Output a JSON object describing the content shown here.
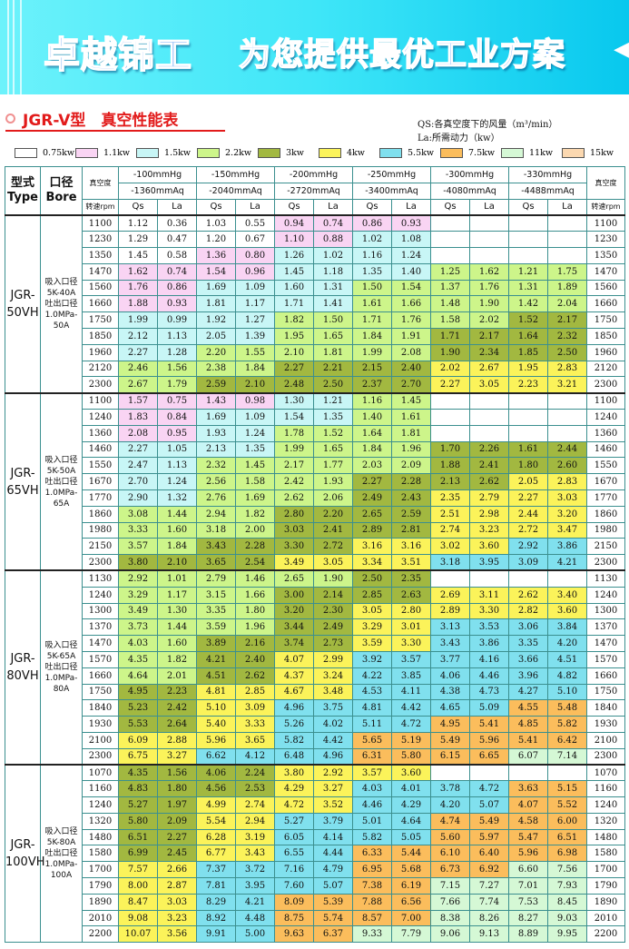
{
  "banner": {
    "left": "卓越锦工",
    "right": "为您提供最优工业方案"
  },
  "title": "JGR-V型　真空性能表",
  "notes": [
    "QS:各真空度下的风量（m³/min）",
    "La:所需动力（kw）"
  ],
  "colors": {
    "W": "#ffffff",
    "P": "#f9d4f3",
    "C": "#c8f6f6",
    "G": "#cdf58a",
    "O": "#a2b840",
    "Y": "#fbf35a",
    "B": "#80e0ee",
    "R": "#fbbd5c",
    "M": "#d5f8d5",
    "T": "#fbd8b0"
  },
  "legend": [
    {
      "c": "W",
      "label": "0.75kw"
    },
    {
      "c": "P",
      "label": "1.1kw"
    },
    {
      "c": "C",
      "label": "1.5kw"
    },
    {
      "c": "G",
      "label": "2.2kw"
    },
    {
      "c": "O",
      "label": "3kw"
    },
    {
      "c": "Y",
      "label": "4kw"
    },
    {
      "c": "B",
      "label": "5.5kw"
    },
    {
      "c": "R",
      "label": "7.5kw"
    },
    {
      "c": "M",
      "label": "11kw"
    },
    {
      "c": "T",
      "label": "15kw"
    }
  ],
  "header": {
    "type": "型式",
    "type_en": "Type",
    "bore": "口径",
    "bore_en": "Bore",
    "vac": "真空度",
    "rpm": "转速rpm",
    "qs": "Qs",
    "la": "La",
    "pressures": [
      [
        "-100mmHg",
        "-1360mmAq"
      ],
      [
        "-150mmHg",
        "-2040mmAq"
      ],
      [
        "-200mmHg",
        "-2720mmAq"
      ],
      [
        "-250mmHg",
        "-3400mmAq"
      ],
      [
        "-300mmHg",
        "-4080mmAq"
      ],
      [
        "-330mmHg",
        "-4488mmAq"
      ]
    ]
  },
  "groups": [
    {
      "type": "JGR-50VH",
      "bore": [
        "吸入口径",
        "5K-40A",
        "吐出口径",
        "1.0MPa-",
        "50A"
      ],
      "rows": [
        [
          "1100",
          "WWPP",
          [
            "1.12",
            "0.36",
            "1.03",
            "0.55",
            "0.94",
            "0.74",
            "0.86",
            "0.93"
          ]
        ],
        [
          "1230",
          "WWPC",
          [
            "1.29",
            "0.47",
            "1.20",
            "0.67",
            "1.10",
            "0.88",
            "1.02",
            "1.08"
          ]
        ],
        [
          "1350",
          "WPCC",
          [
            "1.45",
            "0.58",
            "1.36",
            "0.80",
            "1.26",
            "1.02",
            "1.16",
            "1.24"
          ]
        ],
        [
          "1470",
          "PPCCGG",
          [
            "1.62",
            "0.74",
            "1.54",
            "0.96",
            "1.45",
            "1.18",
            "1.35",
            "1.40",
            "1.25",
            "1.62",
            "1.21",
            "1.75"
          ]
        ],
        [
          "1560",
          "PCCGGG",
          [
            "1.76",
            "0.86",
            "1.69",
            "1.09",
            "1.60",
            "1.31",
            "1.50",
            "1.54",
            "1.37",
            "1.76",
            "1.31",
            "1.89"
          ]
        ],
        [
          "1660",
          "PCCGGG",
          [
            "1.88",
            "0.93",
            "1.81",
            "1.17",
            "1.71",
            "1.41",
            "1.61",
            "1.66",
            "1.48",
            "1.90",
            "1.42",
            "2.04"
          ]
        ],
        [
          "1750",
          "CCGGGO",
          [
            "1.99",
            "0.99",
            "1.92",
            "1.27",
            "1.82",
            "1.50",
            "1.71",
            "1.76",
            "1.58",
            "2.02",
            "1.52",
            "2.17"
          ]
        ],
        [
          "1850",
          "CCGGOO",
          [
            "2.12",
            "1.13",
            "2.05",
            "1.39",
            "1.95",
            "1.65",
            "1.84",
            "1.91",
            "1.71",
            "2.17",
            "1.64",
            "2.32"
          ]
        ],
        [
          "1960",
          "CGGGOO",
          [
            "2.27",
            "1.28",
            "2.20",
            "1.55",
            "2.10",
            "1.81",
            "1.99",
            "2.08",
            "1.90",
            "2.34",
            "1.85",
            "2.50"
          ]
        ],
        [
          "2120",
          "GGOOYY",
          [
            "2.46",
            "1.56",
            "2.38",
            "1.84",
            "2.27",
            "2.21",
            "2.15",
            "2.40",
            "2.02",
            "2.67",
            "1.95",
            "2.83"
          ]
        ],
        [
          "2300",
          "GOOOYY",
          [
            "2.67",
            "1.79",
            "2.59",
            "2.10",
            "2.48",
            "2.50",
            "2.37",
            "2.70",
            "2.27",
            "3.05",
            "2.23",
            "3.21"
          ]
        ]
      ]
    },
    {
      "type": "JGR-65VH",
      "bore": [
        "吸入口径",
        "5K-50A",
        "吐出口径",
        "1.0MPa-",
        "65A"
      ],
      "rows": [
        [
          "1100",
          "PPCG",
          [
            "1.57",
            "0.75",
            "1.43",
            "0.98",
            "1.30",
            "1.21",
            "1.16",
            "1.45"
          ]
        ],
        [
          "1240",
          "PCCG",
          [
            "1.83",
            "0.84",
            "1.69",
            "1.09",
            "1.54",
            "1.35",
            "1.40",
            "1.61"
          ]
        ],
        [
          "1360",
          "PCGG",
          [
            "2.08",
            "0.95",
            "1.93",
            "1.24",
            "1.78",
            "1.52",
            "1.64",
            "1.81"
          ]
        ],
        [
          "1460",
          "CCGGOO",
          [
            "2.27",
            "1.05",
            "2.13",
            "1.35",
            "1.99",
            "1.65",
            "1.84",
            "1.96",
            "1.70",
            "2.26",
            "1.61",
            "2.44"
          ]
        ],
        [
          "1550",
          "CGGGOO",
          [
            "2.47",
            "1.13",
            "2.32",
            "1.45",
            "2.17",
            "1.77",
            "2.03",
            "2.09",
            "1.88",
            "2.41",
            "1.80",
            "2.60"
          ]
        ],
        [
          "1670",
          "CGGOOY",
          [
            "2.70",
            "1.24",
            "2.56",
            "1.58",
            "2.42",
            "1.93",
            "2.27",
            "2.28",
            "2.13",
            "2.62",
            "2.05",
            "2.83"
          ]
        ],
        [
          "1770",
          "CGGOYY",
          [
            "2.90",
            "1.32",
            "2.76",
            "1.69",
            "2.62",
            "2.06",
            "2.49",
            "2.43",
            "2.35",
            "2.79",
            "2.27",
            "3.03"
          ]
        ],
        [
          "1860",
          "GGOOYY",
          [
            "3.08",
            "1.44",
            "2.94",
            "1.82",
            "2.80",
            "2.20",
            "2.65",
            "2.59",
            "2.51",
            "2.98",
            "2.44",
            "3.20"
          ]
        ],
        [
          "1980",
          "GGOOYY",
          [
            "3.33",
            "1.60",
            "3.18",
            "2.00",
            "3.03",
            "2.41",
            "2.89",
            "2.81",
            "2.74",
            "3.23",
            "2.72",
            "3.47"
          ]
        ],
        [
          "2150",
          "GOOYYB",
          [
            "3.57",
            "1.84",
            "3.43",
            "2.28",
            "3.30",
            "2.72",
            "3.16",
            "3.16",
            "3.02",
            "3.60",
            "2.92",
            "3.86"
          ]
        ],
        [
          "2300",
          "OOYYBB",
          [
            "3.80",
            "2.10",
            "3.65",
            "2.54",
            "3.49",
            "3.05",
            "3.34",
            "3.51",
            "3.18",
            "3.95",
            "3.09",
            "4.21"
          ]
        ]
      ]
    },
    {
      "type": "JGR-80VH",
      "bore": [
        "吸入口径",
        "5K-65A",
        "吐出口径",
        "1.0MPa-",
        "80A"
      ],
      "rows": [
        [
          "1130",
          "GGGO",
          [
            "2.92",
            "1.01",
            "2.79",
            "1.46",
            "2.65",
            "1.90",
            "2.50",
            "2.35"
          ]
        ],
        [
          "1240",
          "GGOOYY",
          [
            "3.29",
            "1.17",
            "3.15",
            "1.66",
            "3.00",
            "2.14",
            "2.85",
            "2.63",
            "2.69",
            "3.11",
            "2.62",
            "3.40"
          ]
        ],
        [
          "1300",
          "GGOYYY",
          [
            "3.49",
            "1.30",
            "3.35",
            "1.80",
            "3.20",
            "2.30",
            "3.05",
            "2.80",
            "2.89",
            "3.30",
            "2.82",
            "3.60"
          ]
        ],
        [
          "1370",
          "GGOYBB",
          [
            "3.73",
            "1.44",
            "3.59",
            "1.96",
            "3.44",
            "2.49",
            "3.29",
            "3.01",
            "3.13",
            "3.53",
            "3.06",
            "3.84"
          ]
        ],
        [
          "1470",
          "GOOYBB",
          [
            "4.03",
            "1.60",
            "3.89",
            "2.16",
            "3.74",
            "2.73",
            "3.59",
            "3.30",
            "3.43",
            "3.86",
            "3.35",
            "4.20"
          ]
        ],
        [
          "1570",
          "GOYBBB",
          [
            "4.35",
            "1.82",
            "4.21",
            "2.40",
            "4.07",
            "2.99",
            "3.92",
            "3.57",
            "3.77",
            "4.16",
            "3.66",
            "4.51"
          ]
        ],
        [
          "1660",
          "GOYBBB",
          [
            "4.64",
            "2.01",
            "4.51",
            "2.62",
            "4.37",
            "3.24",
            "4.22",
            "3.85",
            "4.06",
            "4.46",
            "3.96",
            "4.82"
          ]
        ],
        [
          "1750",
          "OYYBBB",
          [
            "4.95",
            "2.23",
            "4.81",
            "2.85",
            "4.67",
            "3.48",
            "4.53",
            "4.11",
            "4.38",
            "4.73",
            "4.27",
            "5.10"
          ]
        ],
        [
          "1840",
          "OYBBBR",
          [
            "5.23",
            "2.42",
            "5.10",
            "3.09",
            "4.96",
            "3.75",
            "4.81",
            "4.42",
            "4.65",
            "5.09",
            "4.55",
            "5.48"
          ]
        ],
        [
          "1930",
          "OYBBRR",
          [
            "5.53",
            "2.64",
            "5.40",
            "3.33",
            "5.26",
            "4.02",
            "5.11",
            "4.72",
            "4.95",
            "5.41",
            "4.85",
            "5.82"
          ]
        ],
        [
          "2100",
          "YYBRRR",
          [
            "6.09",
            "2.88",
            "5.96",
            "3.65",
            "5.82",
            "4.42",
            "5.65",
            "5.19",
            "5.49",
            "5.96",
            "5.41",
            "6.42"
          ]
        ],
        [
          "2300",
          "YBBRRM",
          [
            "6.75",
            "3.27",
            "6.62",
            "4.12",
            "6.48",
            "4.96",
            "6.31",
            "5.80",
            "6.15",
            "6.65",
            "6.07",
            "7.14"
          ]
        ]
      ]
    },
    {
      "type": "JGR-100VH",
      "bore": [
        "吸入口径",
        "5K-80A",
        "吐出口径",
        "1.0MPa-",
        "100A"
      ],
      "rows": [
        [
          "1070",
          "OOYY",
          [
            "4.35",
            "1.56",
            "4.06",
            "2.24",
            "3.80",
            "2.92",
            "3.57",
            "3.60"
          ]
        ],
        [
          "1160",
          "OOYBBR",
          [
            "4.83",
            "1.80",
            "4.56",
            "2.53",
            "4.29",
            "3.27",
            "4.03",
            "4.01",
            "3.78",
            "4.72",
            "3.63",
            "5.15"
          ]
        ],
        [
          "1240",
          "OYYBBR",
          [
            "5.27",
            "1.97",
            "4.99",
            "2.74",
            "4.72",
            "3.52",
            "4.46",
            "4.29",
            "4.20",
            "5.07",
            "4.07",
            "5.52"
          ]
        ],
        [
          "1320",
          "OYBBRR",
          [
            "5.80",
            "2.09",
            "5.54",
            "2.94",
            "5.27",
            "3.79",
            "5.01",
            "4.64",
            "4.74",
            "5.49",
            "4.58",
            "6.00"
          ]
        ],
        [
          "1480",
          "OYBBRR",
          [
            "6.51",
            "2.27",
            "6.28",
            "3.19",
            "6.05",
            "4.14",
            "5.82",
            "5.05",
            "5.60",
            "5.97",
            "5.47",
            "6.51"
          ]
        ],
        [
          "1580",
          "OYBRRR",
          [
            "6.99",
            "2.45",
            "6.77",
            "3.43",
            "6.55",
            "4.44",
            "6.33",
            "5.44",
            "6.10",
            "6.40",
            "5.96",
            "6.98"
          ]
        ],
        [
          "1700",
          "YBBRRM",
          [
            "7.57",
            "2.66",
            "7.37",
            "3.72",
            "7.16",
            "4.79",
            "6.95",
            "5.68",
            "6.73",
            "6.92",
            "6.60",
            "7.56"
          ]
        ],
        [
          "1790",
          "YBBRMM",
          [
            "8.00",
            "2.87",
            "7.81",
            "3.95",
            "7.60",
            "5.07",
            "7.38",
            "6.19",
            "7.15",
            "7.27",
            "7.01",
            "7.93"
          ]
        ],
        [
          "1890",
          "YBRRMM",
          [
            "8.47",
            "3.03",
            "8.29",
            "4.21",
            "8.09",
            "5.39",
            "7.88",
            "6.56",
            "7.66",
            "7.74",
            "7.53",
            "8.45"
          ]
        ],
        [
          "2010",
          "YBRRMM",
          [
            "9.08",
            "3.23",
            "8.92",
            "4.48",
            "8.75",
            "5.74",
            "8.57",
            "7.00",
            "8.38",
            "8.26",
            "8.27",
            "9.03"
          ]
        ],
        [
          "2200",
          "YBRMMM",
          [
            "10.07",
            "3.56",
            "9.91",
            "5.00",
            "9.63",
            "6.37",
            "9.33",
            "7.79",
            "9.06",
            "9.13",
            "8.89",
            "9.95"
          ]
        ]
      ]
    }
  ]
}
